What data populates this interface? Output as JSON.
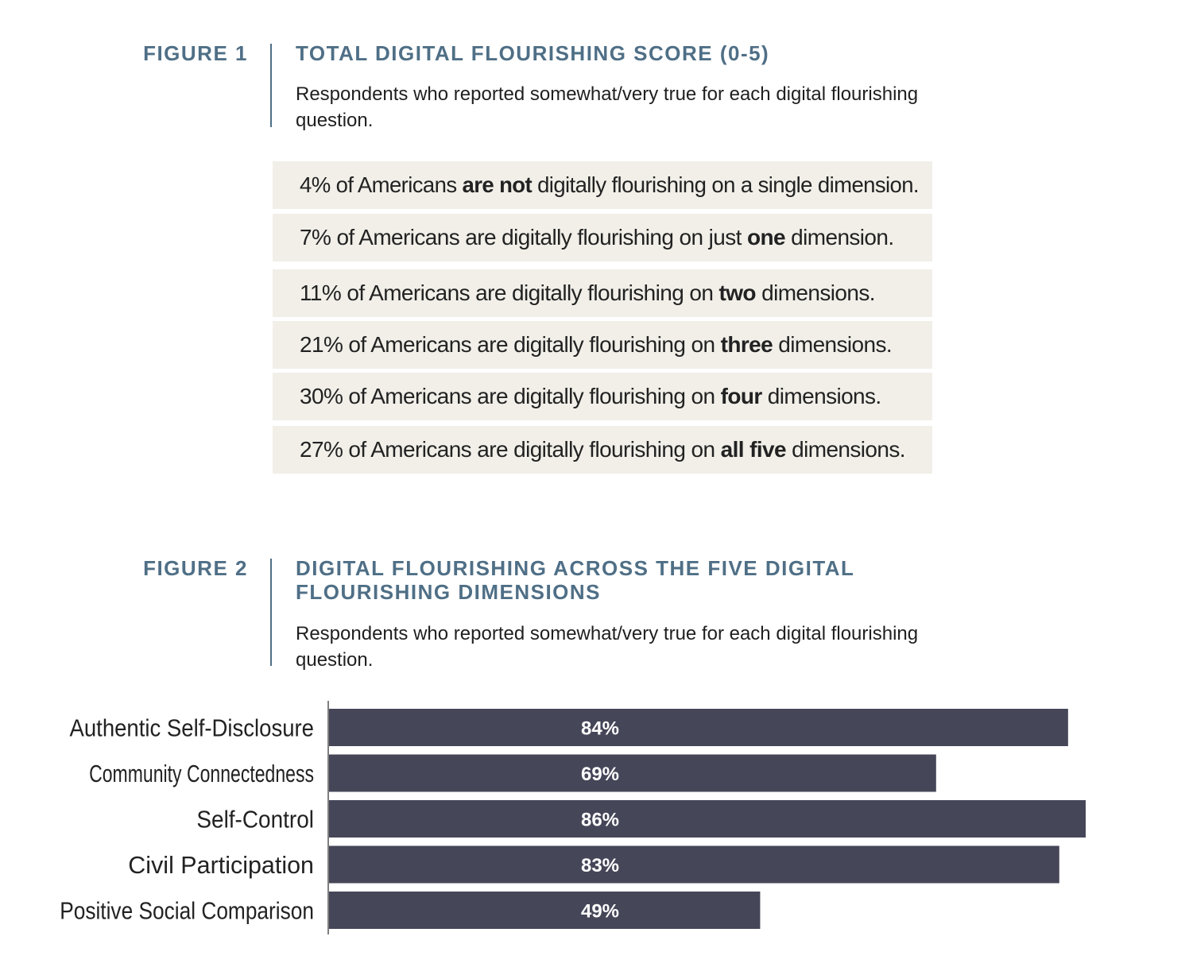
{
  "figure1": {
    "label": "FIGURE 1",
    "title": "TOTAL DIGITAL FLOURISHING SCORE (0-5)",
    "subtitle": "Respondents who reported somewhat/very true for each digital flourishing question.",
    "rows": [
      {
        "pct": "4%",
        "pre": " of Americans ",
        "bold": "are not",
        "post": " digitally flourishing on a single dimension."
      },
      {
        "pct": "7%",
        "pre": " of Americans are digitally flourishing on just ",
        "bold": "one",
        "post": " dimension."
      },
      {
        "pct": "11%",
        "pre": " of Americans are digitally flourishing on ",
        "bold": "two",
        "post": " dimensions."
      },
      {
        "pct": "21%",
        "pre": " of Americans are digitally flourishing on ",
        "bold": "three",
        "post": " dimensions."
      },
      {
        "pct": "30%",
        "pre": " of Americans are digitally flourishing on ",
        "bold": "four",
        "post": " dimensions."
      },
      {
        "pct": "27%",
        "pre": " of Americans are digitally flourishing on ",
        "bold": "all five",
        "post": " dimensions."
      }
    ]
  },
  "figure2": {
    "label": "FIGURE 2",
    "title": "DIGITAL FLOURISHING ACROSS THE FIVE DIGITAL FLOURISHING DIMENSIONS",
    "subtitle": "Respondents who reported somewhat/very true for each digital flourishing question."
  },
  "colors": {
    "accent": "#4f6f86",
    "bar": "#454658",
    "row_bg": "#f1efe8"
  },
  "chart_data": {
    "type": "bar",
    "orientation": "horizontal",
    "categories": [
      "Authentic Self-Disclosure",
      "Community Connectedness",
      "Self-Control",
      "Civil Participation",
      "Positive Social Comparison"
    ],
    "values": [
      84,
      69,
      86,
      83,
      49
    ],
    "value_labels": [
      "84%",
      "69%",
      "86%",
      "83%",
      "49%"
    ],
    "unit": "%",
    "xlim": [
      0,
      86
    ],
    "grid": false,
    "legend": "none"
  }
}
